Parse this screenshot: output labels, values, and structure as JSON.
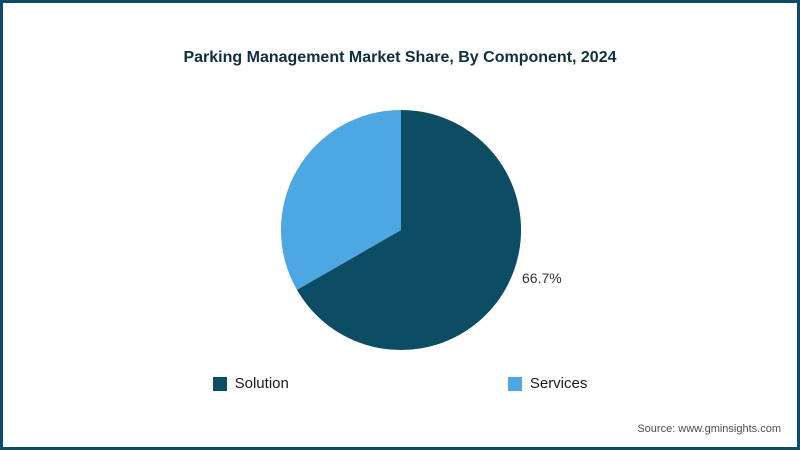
{
  "chart_data": {
    "type": "pie",
    "title": "Parking Management Market Share, By Component, 2024",
    "slices": [
      {
        "label": "Solution",
        "value": 66.7,
        "color": "#0d4d63",
        "data_label": "66.7%"
      },
      {
        "label": "Services",
        "value": 33.3,
        "color": "#4da7e3",
        "data_label": ""
      }
    ],
    "start_angle_deg": 0,
    "direction": "clockwise",
    "legend_position": "bottom",
    "data_label_position": "outside-right"
  },
  "footer": {
    "source": "Source: www.gminsights.com"
  },
  "theme": {
    "frame_border": "#0d4d63",
    "title_color": "#0e2f40",
    "background": "#ffffff"
  }
}
